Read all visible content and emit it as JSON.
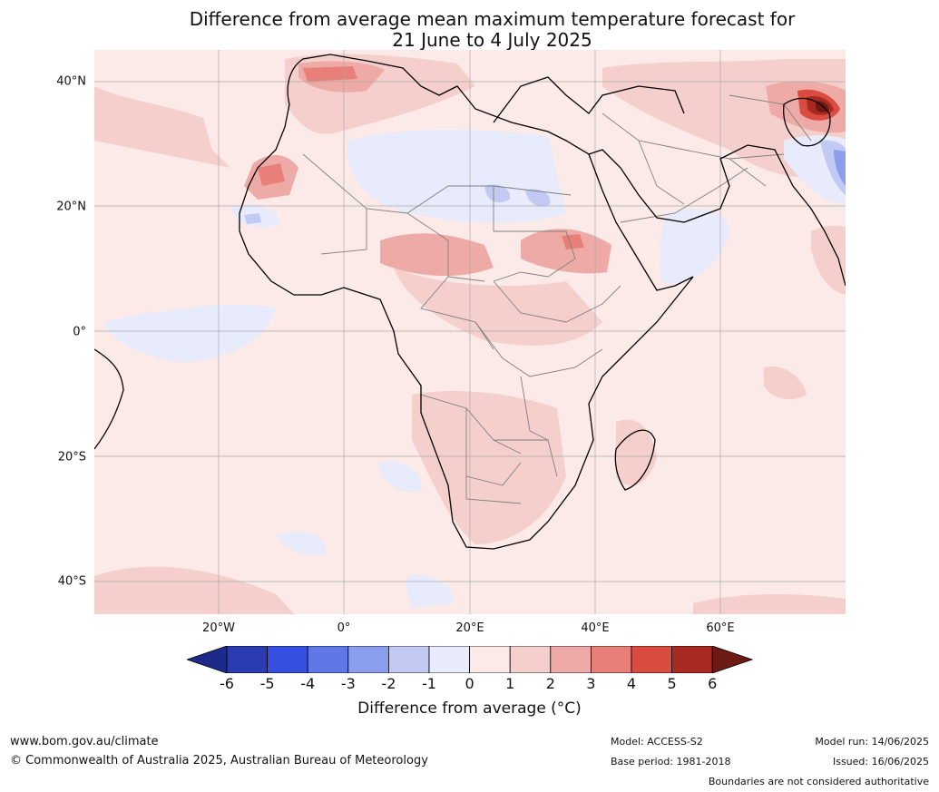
{
  "title_line1": "Difference from average mean maximum temperature forecast for",
  "title_line2": "21 June to 4 July 2025",
  "lat_labels": [
    "40°N",
    "20°N",
    "0°",
    "20°S",
    "40°S"
  ],
  "lon_labels": [
    "20°W",
    "0°",
    "20°E",
    "40°E",
    "60°E"
  ],
  "colorbar": {
    "ticks": [
      "-6",
      "-5",
      "-4",
      "-3",
      "-2",
      "-1",
      "0",
      "1",
      "2",
      "3",
      "4",
      "5",
      "6"
    ],
    "colors": [
      "#1e2a8a",
      "#2a3cb0",
      "#3550e0",
      "#5f78e6",
      "#8b9ded",
      "#c2c9f3",
      "#e8ebfb",
      "#fbeae8",
      "#f5cfcc",
      "#eeaaa6",
      "#e88079",
      "#da4b40",
      "#a82a22",
      "#6e1a14"
    ],
    "title": "Difference from average (°C)"
  },
  "footer": {
    "website": "www.bom.gov.au/climate",
    "copyright": "© Commonwealth of Australia 2025, Australian Bureau of Meteorology",
    "model": "Model: ACCESS-S2",
    "base_period": "Base period: 1981-2018",
    "model_run": "Model run: 14/06/2025",
    "issued": "Issued: 16/06/2025",
    "disclaimer": "Boundaries are not considered authoritative"
  },
  "map": {
    "region": "Africa",
    "background_color": "#fbeae8",
    "land_outline_color": "#000000",
    "border_color": "#808080",
    "grid_color": "#a0a0a0"
  }
}
